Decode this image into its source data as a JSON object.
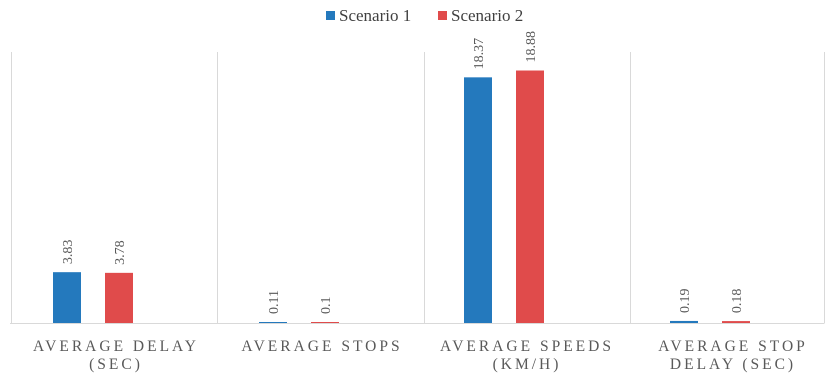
{
  "chart_data": {
    "type": "bar",
    "categories": [
      [
        "AVERAGE DELAY",
        "(SEC)"
      ],
      [
        "AVERAGE STOPS"
      ],
      [
        "AVERAGE SPEEDS",
        "(KM/H)"
      ],
      [
        "AVERAGE STOP",
        "DELAY (SEC)"
      ]
    ],
    "series": [
      {
        "name": "Scenario 1",
        "color": "#2479bd",
        "values": [
          3.83,
          0.11,
          18.37,
          0.19
        ],
        "labels": [
          "3.83",
          "0.11",
          "18.37",
          "0.19"
        ]
      },
      {
        "name": "Scenario 2",
        "color": "#e04b4b",
        "values": [
          3.78,
          0.1,
          18.88,
          0.18
        ],
        "labels": [
          "3.78",
          "0.1",
          "18.88",
          "0.18"
        ]
      }
    ],
    "ylim": [
      0,
      20
    ],
    "legend_position": "top-center",
    "grid": false,
    "category_separators": true
  }
}
